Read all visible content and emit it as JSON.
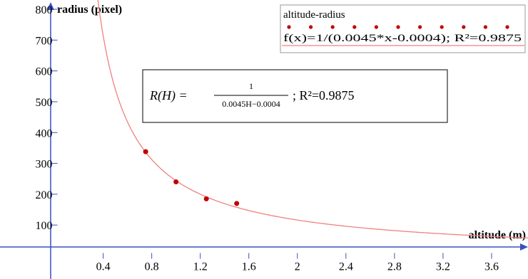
{
  "chart_data": {
    "type": "scatter",
    "xlabel": "altitude (m)",
    "ylabel": "radius (pixel)",
    "xlim": [
      -0.45,
      3.9
    ],
    "ylim": [
      -75,
      830
    ],
    "x_ticks": [
      0.4,
      0.8,
      1.2,
      1.6,
      2,
      2.4,
      2.8,
      3.2,
      3.6
    ],
    "x_tick_labels": [
      "0.4",
      "0.8",
      "1.2",
      "1.6",
      "2",
      "2.4",
      "2.8",
      "3.2",
      "3.6"
    ],
    "y_ticks": [
      100,
      200,
      300,
      400,
      500,
      600,
      700,
      800
    ],
    "y_tick_labels": [
      "100",
      "200",
      "300",
      "400",
      "500",
      "600",
      "700",
      "800"
    ],
    "series": [
      {
        "name": "altitude-radius",
        "x": [
          0.75,
          1.0,
          1.25,
          1.5
        ],
        "y": [
          338,
          240,
          185,
          170
        ],
        "color": "#c00000"
      }
    ],
    "fit": {
      "name": "f(x)=1/(0.0045*x-0.0004); R²=0.9875",
      "a": 0.0045,
      "b": -0.0004,
      "x_range": [
        0.316,
        3.9
      ],
      "color": "#f08080"
    },
    "annotation": {
      "lhs": "R(H) = ",
      "numerator": "1",
      "denominator": "0.0045H−0.0004",
      "rhs": "; R²=0.9875"
    },
    "legend": {
      "title": "altitude-radius",
      "fit_label": "f(x)=1/(0.0045*x-0.0004); R²=0.9875",
      "position": "top-right"
    },
    "grid": false
  }
}
